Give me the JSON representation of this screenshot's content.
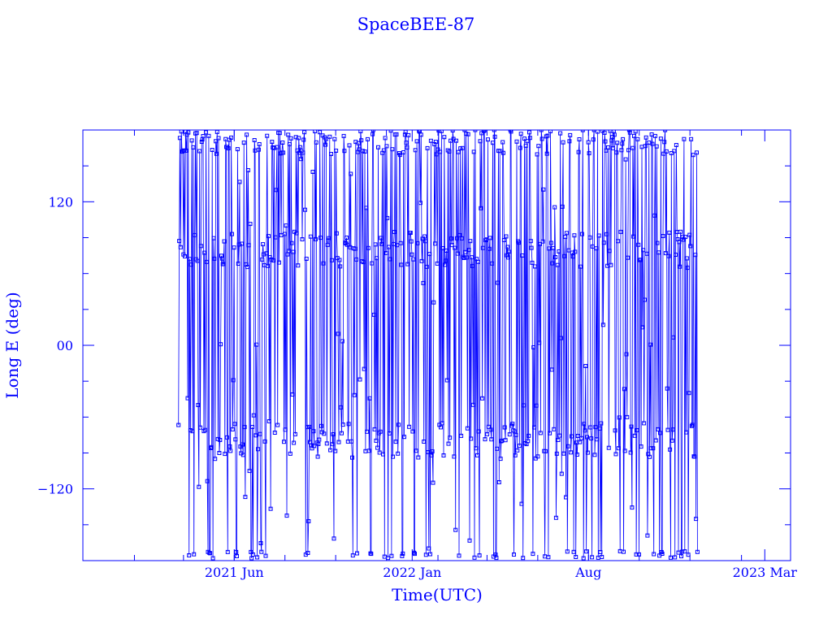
{
  "chart_data": {
    "type": "line",
    "title": "SpaceBEE-87",
    "xlabel": "Time(UTC)",
    "ylabel": "Long E (deg)",
    "ylim": [
      -180,
      180
    ],
    "xlim": [
      "2020-12-01",
      "2023-04-01"
    ],
    "y_ticks": [
      {
        "value": 120,
        "label": "120"
      },
      {
        "value": 0,
        "label": "00"
      },
      {
        "value": -120,
        "label": "−120"
      }
    ],
    "x_ticks": [
      {
        "date": "2021-06-01",
        "label": "2021 Jun"
      },
      {
        "date": "2022-01-01",
        "label": "2022 Jan"
      },
      {
        "date": "2022-08-01",
        "label": "Aug"
      },
      {
        "date": "2023-03-01",
        "label": "2023 Mar"
      }
    ],
    "grid": false,
    "series": [
      {
        "color": "#0000ff",
        "marker": "square",
        "x_start": "2021-03-26",
        "x_end": "2022-12-10",
        "points_per_month": 36,
        "bands": [
          -80,
          80,
          170
        ]
      }
    ]
  },
  "colors": {
    "axis": "#0000ff",
    "series": "#0000ff",
    "background": "#ffffff"
  }
}
